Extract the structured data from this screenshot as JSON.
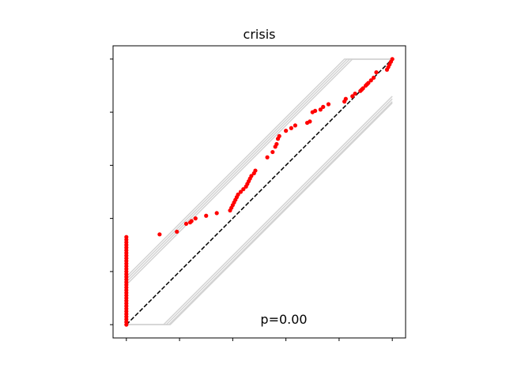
{
  "chart_data": {
    "type": "scatter",
    "title": "crisis",
    "annotation": "p=0.00",
    "xlabel": "",
    "ylabel": "",
    "xlim": [
      -0.05,
      1.05
    ],
    "ylim": [
      -0.05,
      1.05
    ],
    "xticks": [
      0,
      0.2,
      0.4,
      0.6,
      0.8,
      1.0
    ],
    "yticks": [
      0,
      0.2,
      0.4,
      0.6,
      0.8,
      1.0
    ],
    "tick_labels_visible": false,
    "grid": false,
    "reference_line": {
      "from": [
        0,
        0
      ],
      "to": [
        1,
        1
      ],
      "style": "dashed",
      "color": "#000000"
    },
    "envelope_color": "#d3d3d3",
    "envelope_lines": [
      [
        [
          0,
          0.16
        ],
        [
          0.84,
          1.0
        ],
        [
          1.0,
          1.0
        ]
      ],
      [
        [
          0,
          0.15
        ],
        [
          0.85,
          1.0
        ],
        [
          1.0,
          1.0
        ]
      ],
      [
        [
          0,
          0.17
        ],
        [
          0.83,
          1.0
        ],
        [
          1.0,
          1.0
        ]
      ],
      [
        [
          0,
          0.18
        ],
        [
          0.82,
          1.0
        ],
        [
          1.0,
          1.0
        ]
      ],
      [
        [
          0,
          0.0
        ],
        [
          0.14,
          0.0
        ],
        [
          1.0,
          0.86
        ]
      ],
      [
        [
          0,
          0.0
        ],
        [
          0.15,
          0.0
        ],
        [
          1.0,
          0.85
        ]
      ],
      [
        [
          0,
          0.0
        ],
        [
          0.16,
          0.0
        ],
        [
          1.0,
          0.84
        ]
      ],
      [
        [
          0,
          0.0
        ],
        [
          0.165,
          0.0
        ],
        [
          1.0,
          0.835
        ]
      ]
    ],
    "point_color": "#ff0000",
    "series": [
      {
        "x": [
          0,
          0,
          0,
          0,
          0,
          0,
          0,
          0,
          0,
          0,
          0,
          0,
          0,
          0,
          0,
          0,
          0,
          0,
          0,
          0,
          0,
          0,
          0,
          0,
          0,
          0,
          0,
          0,
          0,
          0,
          0,
          0,
          0,
          0,
          0.125,
          0.19,
          0.225,
          0.24,
          0.245,
          0.26,
          0.3,
          0.34,
          0.39,
          0.395,
          0.4,
          0.405,
          0.41,
          0.415,
          0.42,
          0.43,
          0.44,
          0.45,
          0.455,
          0.46,
          0.465,
          0.47,
          0.48,
          0.485,
          0.53,
          0.55,
          0.56,
          0.565,
          0.57,
          0.575,
          0.6,
          0.62,
          0.635,
          0.68,
          0.69,
          0.7,
          0.71,
          0.73,
          0.74,
          0.76,
          0.82,
          0.825,
          0.85,
          0.86,
          0.88,
          0.885,
          0.89,
          0.9,
          0.905,
          0.91,
          0.92,
          0.93,
          0.94,
          0.98,
          0.985,
          0.99,
          0.995,
          1.0
        ],
        "y": [
          0,
          0.01,
          0.02,
          0.03,
          0.04,
          0.05,
          0.06,
          0.07,
          0.08,
          0.09,
          0.1,
          0.11,
          0.12,
          0.13,
          0.14,
          0.15,
          0.16,
          0.17,
          0.18,
          0.19,
          0.2,
          0.21,
          0.22,
          0.23,
          0.24,
          0.25,
          0.26,
          0.27,
          0.28,
          0.29,
          0.3,
          0.31,
          0.32,
          0.33,
          0.34,
          0.35,
          0.38,
          0.385,
          0.39,
          0.4,
          0.41,
          0.42,
          0.43,
          0.44,
          0.45,
          0.46,
          0.47,
          0.48,
          0.49,
          0.5,
          0.51,
          0.52,
          0.53,
          0.54,
          0.55,
          0.56,
          0.57,
          0.58,
          0.63,
          0.65,
          0.67,
          0.68,
          0.7,
          0.71,
          0.73,
          0.74,
          0.75,
          0.76,
          0.765,
          0.8,
          0.805,
          0.81,
          0.82,
          0.83,
          0.84,
          0.85,
          0.86,
          0.87,
          0.88,
          0.885,
          0.89,
          0.9,
          0.905,
          0.91,
          0.92,
          0.93,
          0.95,
          0.96,
          0.97,
          0.98,
          0.99,
          1.0
        ]
      }
    ]
  }
}
